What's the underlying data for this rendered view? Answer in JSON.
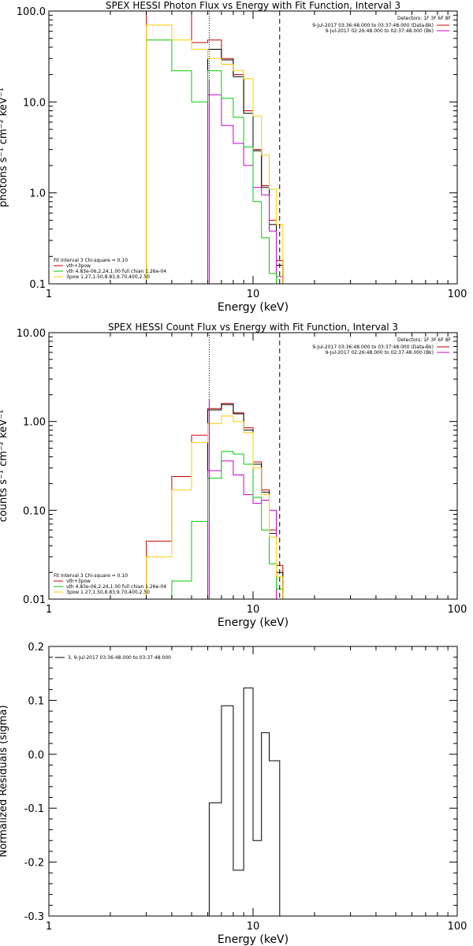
{
  "chart_data": [
    {
      "type": "line",
      "title": "SPEX HESSI Photon Flux vs Energy with Fit Function, Interval 3",
      "xlabel": "Energy (keV)",
      "ylabel": "photons s⁻¹ cm⁻² keV⁻¹",
      "xscale": "log",
      "yscale": "log",
      "xlim": [
        1,
        100
      ],
      "ylim": [
        0.1,
        100
      ],
      "xticks": [
        "1",
        "10",
        "100"
      ],
      "yticks": [
        "0.1",
        "1.0",
        "10.0",
        "100.0"
      ],
      "detectors": "Detectors: 1F 3F 6F 8F",
      "legend_right": [
        {
          "text": "9-Jul-2017 03:36:48.000 to 03:37:48.000 (Data-Bk)",
          "color": "#cc0000"
        },
        {
          "text": "9-Jul-2017 02:26:48.000 to 02:37:48.000 (Bk)",
          "color": "#cc00cc"
        }
      ],
      "legend_left_header": "Fit Interval 3   Chi-square = 0.10",
      "legend_left": [
        {
          "text": "vth+3pow",
          "color": "#cc0000"
        },
        {
          "text": "vth 4.83e-06,2.24,1.00  full chian 1.26e-04",
          "color": "#00cc00"
        },
        {
          "text": "3pow 1.27,1.50,8.83,9.70,400,2.50",
          "color": "#ffcc00"
        }
      ],
      "vlines": [
        {
          "x": 6.1,
          "style": "dotted"
        },
        {
          "x": 13.5,
          "style": "dashed"
        }
      ],
      "series": [
        {
          "name": "Data-Bk",
          "color": "#cc0000",
          "edges": [
            3,
            4,
            5,
            6,
            7,
            8,
            9,
            10,
            11,
            12,
            13,
            14,
            15
          ],
          "values": [
            100,
            100,
            45,
            48,
            30,
            20,
            8,
            3,
            1.2,
            0.5,
            0.18,
            0.1
          ]
        },
        {
          "name": "vth+3pow",
          "color": "#000000",
          "edges": [
            6,
            7,
            8,
            9,
            10,
            11,
            12,
            13,
            14
          ],
          "values": [
            38,
            29,
            19,
            7.5,
            2.9,
            1.15,
            0.45,
            0.16
          ]
        },
        {
          "name": "Bk",
          "color": "#cc00cc",
          "edges": [
            6,
            7,
            8,
            9,
            10,
            11,
            12,
            13,
            14
          ],
          "values": [
            12,
            5.5,
            3.5,
            2.0,
            1.15,
            0.95,
            0.38,
            0.12
          ]
        },
        {
          "name": "vth",
          "color": "#00cc00",
          "edges": [
            3,
            4,
            5,
            6,
            7,
            8,
            9,
            10,
            11,
            12,
            13,
            14
          ],
          "values": [
            48,
            22,
            10,
            22,
            11,
            6.8,
            3.2,
            0.8,
            0.32,
            0.13,
            0.1
          ]
        },
        {
          "name": "3pow",
          "color": "#ffcc00",
          "edges": [
            3,
            4,
            5,
            6,
            7,
            8,
            9,
            10,
            11,
            12,
            13,
            14,
            15
          ],
          "values": [
            70,
            48,
            38,
            30,
            26,
            22,
            18,
            7,
            2.6,
            1.1,
            0.45,
            0.1
          ]
        }
      ]
    },
    {
      "type": "line",
      "title": "SPEX HESSI Count Flux vs Energy with Fit Function, Interval 3",
      "xlabel": "Energy (keV)",
      "ylabel": "counts s⁻¹ cm⁻² keV⁻¹",
      "xscale": "log",
      "yscale": "log",
      "xlim": [
        1,
        100
      ],
      "ylim": [
        0.01,
        10
      ],
      "xticks": [
        "1",
        "10",
        "100"
      ],
      "yticks": [
        "0.01",
        "0.10",
        "1.00",
        "10.00"
      ],
      "detectors": "Detectors: 1F 3F 6F 8F",
      "legend_right": [
        {
          "text": "9-Jul-2017 03:36:48.000 to 03:37:48.000 (Data-Bk)",
          "color": "#cc0000"
        },
        {
          "text": "9-Jul-2017 02:26:48.000 to 02:37:48.000 (Bk)",
          "color": "#cc00cc"
        }
      ],
      "legend_left_header": "Fit Interval 3   Chi-square = 0.10",
      "legend_left": [
        {
          "text": "vth+3pow",
          "color": "#cc0000"
        },
        {
          "text": "vth 4.83e-06,2.24,1.00  full chian 1.26e-04",
          "color": "#00cc00"
        },
        {
          "text": "3pow 1.27,1.50,8.83,9.70,400,2.50",
          "color": "#ffcc00"
        }
      ],
      "vlines": [
        {
          "x": 6.1,
          "style": "dotted"
        },
        {
          "x": 13.5,
          "style": "dashed"
        }
      ],
      "series": [
        {
          "name": "Data-Bk",
          "color": "#cc0000",
          "edges": [
            3,
            4,
            5,
            6,
            7,
            8,
            9,
            10,
            11,
            12,
            13,
            14,
            15
          ],
          "values": [
            0.045,
            0.24,
            0.7,
            1.4,
            1.6,
            1.25,
            0.85,
            0.35,
            0.17,
            0.06,
            0.024,
            0.01
          ]
        },
        {
          "name": "vth+3pow",
          "color": "#000000",
          "edges": [
            6,
            7,
            8,
            9,
            10,
            11,
            12,
            13,
            14
          ],
          "values": [
            1.35,
            1.55,
            1.22,
            0.8,
            0.33,
            0.16,
            0.055,
            0.02
          ]
        },
        {
          "name": "Bk",
          "color": "#cc00cc",
          "edges": [
            6,
            7,
            8,
            9,
            10,
            11,
            12,
            13
          ],
          "values": [
            0.28,
            0.36,
            0.25,
            0.15,
            0.12,
            0.13,
            0.1
          ]
        },
        {
          "name": "vth",
          "color": "#00cc00",
          "edges": [
            4,
            5,
            6,
            7,
            8,
            9,
            10,
            11,
            12,
            13,
            14
          ],
          "values": [
            0.016,
            0.075,
            0.23,
            0.46,
            0.43,
            0.33,
            0.14,
            0.06,
            0.025,
            0.013
          ]
        },
        {
          "name": "3pow",
          "color": "#ffcc00",
          "edges": [
            3,
            4,
            5,
            6,
            7,
            8,
            9,
            10,
            11,
            12,
            13,
            14,
            15
          ],
          "values": [
            0.03,
            0.17,
            0.58,
            0.95,
            1.15,
            1.0,
            0.75,
            0.3,
            0.15,
            0.05,
            0.018,
            0.01
          ]
        }
      ]
    },
    {
      "type": "line",
      "title": "",
      "xlabel": "Energy (keV)",
      "ylabel": "Normalized Residuals (sigma)",
      "xscale": "log",
      "yscale": "linear",
      "xlim": [
        1,
        100
      ],
      "ylim": [
        -0.3,
        0.2
      ],
      "xticks": [
        "1",
        "10",
        "100"
      ],
      "yticks": [
        "-0.3",
        "-0.2",
        "-0.1",
        "0.0",
        "0.1",
        "0.2"
      ],
      "legend": [
        {
          "text": "3.  9-Jul-2017 03:36:48.000 to 03:37:48.000",
          "color": "#000000"
        }
      ],
      "series": [
        {
          "name": "residuals",
          "color": "#000000",
          "edges": [
            6.1,
            7.0,
            8.0,
            9.0,
            10.0,
            11.0,
            12.0,
            13.5
          ],
          "values": [
            -0.09,
            0.09,
            -0.215,
            0.123,
            -0.16,
            0.04,
            -0.012
          ]
        }
      ]
    }
  ]
}
